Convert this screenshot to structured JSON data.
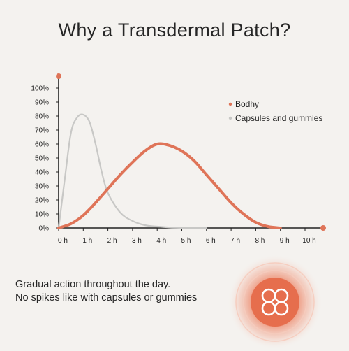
{
  "title": "Why a Transdermal Patch?",
  "caption": {
    "line1": "Gradual action throughout the day.",
    "line2": "No spikes like with capsules or gummies"
  },
  "colors": {
    "bodhy": "#df7458",
    "capsules": "#c8c8c6",
    "axis": "#222222",
    "background": "#f4f2ef"
  },
  "badge_icon": "four-circles-flower-icon",
  "chart_data": {
    "type": "line",
    "x_tick_labels": [
      "0 h",
      "1 h",
      "2 h",
      "3 h",
      "4 h",
      "5 h",
      "6 h",
      "7 h",
      "8 h",
      "9 h",
      "10 h"
    ],
    "y_tick_labels": [
      "0%",
      "10%",
      "20%",
      "30%",
      "40%",
      "50%",
      "60%",
      "70%",
      "80%",
      "90%",
      "100%"
    ],
    "xlim": [
      0,
      10
    ],
    "ylim": [
      0,
      100
    ],
    "grid": false,
    "legend_position": "top-right",
    "series": [
      {
        "name": "Bodhy",
        "color": "#df7458",
        "x": [
          0,
          0.5,
          1,
          1.5,
          2,
          2.5,
          3,
          3.5,
          4,
          4.5,
          5,
          5.5,
          6,
          6.5,
          7,
          7.5,
          8,
          8.5,
          9
        ],
        "y": [
          0,
          3,
          9,
          18,
          28,
          38,
          47,
          55,
          60,
          59,
          55,
          48,
          38,
          28,
          18,
          10,
          4,
          1,
          0
        ]
      },
      {
        "name": "Capsules and gummies",
        "color": "#c8c8c6",
        "x": [
          0,
          0.25,
          0.5,
          0.75,
          1,
          1.25,
          1.5,
          1.75,
          2,
          2.5,
          3,
          3.5,
          4,
          5,
          6
        ],
        "y": [
          0,
          35,
          68,
          79,
          81,
          76,
          60,
          40,
          25,
          11,
          5,
          2,
          1,
          0,
          0
        ]
      }
    ]
  }
}
